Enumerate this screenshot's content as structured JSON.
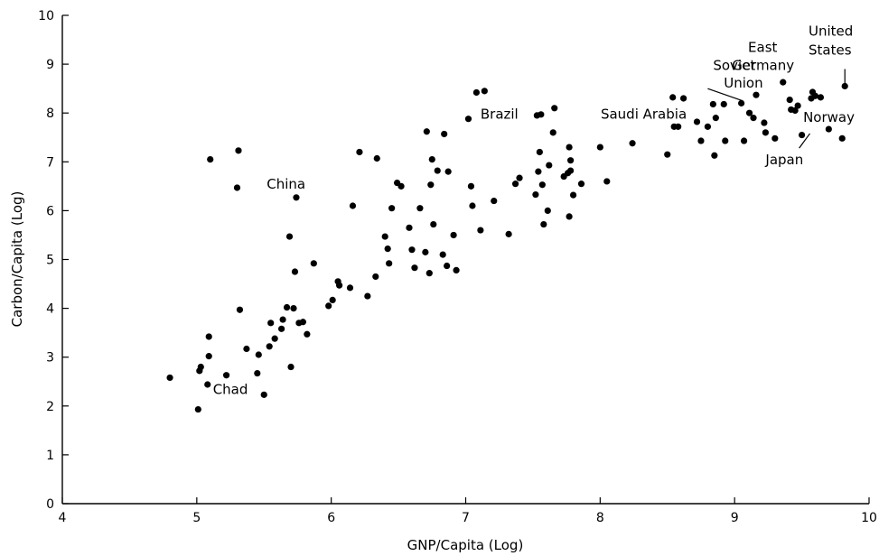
{
  "chart_data": {
    "type": "scatter",
    "title": "",
    "xlabel": "GNP/Capita (Log)",
    "ylabel": "Carbon/Capita (Log)",
    "xlim": [
      4,
      10
    ],
    "ylim": [
      0,
      10
    ],
    "xticks": [
      4,
      5,
      6,
      7,
      8,
      9,
      10
    ],
    "yticks": [
      0,
      1,
      2,
      3,
      4,
      5,
      6,
      7,
      8,
      9,
      10
    ],
    "grid": false,
    "series": [
      {
        "points": [
          [
            4.8,
            2.58
          ],
          [
            5.01,
            1.93
          ],
          [
            5.02,
            2.72
          ],
          [
            5.03,
            2.8
          ],
          [
            5.08,
            2.44
          ],
          [
            5.09,
            3.02
          ],
          [
            5.09,
            3.42
          ],
          [
            5.1,
            7.05
          ],
          [
            5.22,
            2.63
          ],
          [
            5.3,
            6.47
          ],
          [
            5.31,
            7.23
          ],
          [
            5.32,
            3.97
          ],
          [
            5.37,
            3.17
          ],
          [
            5.45,
            2.67
          ],
          [
            5.46,
            3.05
          ],
          [
            5.5,
            2.23
          ],
          [
            5.54,
            3.22
          ],
          [
            5.55,
            3.7
          ],
          [
            5.58,
            3.38
          ],
          [
            5.63,
            3.58
          ],
          [
            5.64,
            3.77
          ],
          [
            5.67,
            4.02
          ],
          [
            5.69,
            5.47
          ],
          [
            5.7,
            2.8
          ],
          [
            5.72,
            4.0
          ],
          [
            5.73,
            4.75
          ],
          [
            5.74,
            6.27
          ],
          [
            5.76,
            3.7
          ],
          [
            5.79,
            3.72
          ],
          [
            5.82,
            3.47
          ],
          [
            5.87,
            4.92
          ],
          [
            5.98,
            4.05
          ],
          [
            6.01,
            4.17
          ],
          [
            6.05,
            4.55
          ],
          [
            6.06,
            4.47
          ],
          [
            6.14,
            4.42
          ],
          [
            6.16,
            6.1
          ],
          [
            6.21,
            7.2
          ],
          [
            6.27,
            4.25
          ],
          [
            6.33,
            4.65
          ],
          [
            6.34,
            7.07
          ],
          [
            6.4,
            5.47
          ],
          [
            6.42,
            5.22
          ],
          [
            6.43,
            4.92
          ],
          [
            6.45,
            6.05
          ],
          [
            6.49,
            6.57
          ],
          [
            6.52,
            6.5
          ],
          [
            6.58,
            5.65
          ],
          [
            6.6,
            5.2
          ],
          [
            6.62,
            4.83
          ],
          [
            6.66,
            6.05
          ],
          [
            6.7,
            5.15
          ],
          [
            6.71,
            7.62
          ],
          [
            6.73,
            4.72
          ],
          [
            6.74,
            6.53
          ],
          [
            6.75,
            7.05
          ],
          [
            6.76,
            5.72
          ],
          [
            6.79,
            6.82
          ],
          [
            6.83,
            5.1
          ],
          [
            6.84,
            7.57
          ],
          [
            6.86,
            4.87
          ],
          [
            6.87,
            6.8
          ],
          [
            6.91,
            5.5
          ],
          [
            6.93,
            4.78
          ],
          [
            7.02,
            7.88
          ],
          [
            7.04,
            6.5
          ],
          [
            7.05,
            6.1
          ],
          [
            7.08,
            8.42
          ],
          [
            7.11,
            5.6
          ],
          [
            7.14,
            8.45
          ],
          [
            7.21,
            6.2
          ],
          [
            7.32,
            5.52
          ],
          [
            7.37,
            6.55
          ],
          [
            7.4,
            6.67
          ],
          [
            7.52,
            6.33
          ],
          [
            7.53,
            7.95
          ],
          [
            7.54,
            6.8
          ],
          [
            7.55,
            7.2
          ],
          [
            7.56,
            7.97
          ],
          [
            7.57,
            6.53
          ],
          [
            7.58,
            5.72
          ],
          [
            7.61,
            6.0
          ],
          [
            7.62,
            6.93
          ],
          [
            7.65,
            7.6
          ],
          [
            7.66,
            8.1
          ],
          [
            7.73,
            6.7
          ],
          [
            7.76,
            6.77
          ],
          [
            7.77,
            7.3
          ],
          [
            7.77,
            5.88
          ],
          [
            7.78,
            7.03
          ],
          [
            7.78,
            6.82
          ],
          [
            7.8,
            6.32
          ],
          [
            7.86,
            6.55
          ],
          [
            8.0,
            7.3
          ],
          [
            8.05,
            6.6
          ],
          [
            8.24,
            7.38
          ],
          [
            8.5,
            7.15
          ],
          [
            8.54,
            8.32
          ],
          [
            8.55,
            7.72
          ],
          [
            8.58,
            7.72
          ],
          [
            8.62,
            8.3
          ],
          [
            8.72,
            7.82
          ],
          [
            8.75,
            7.43
          ],
          [
            8.8,
            7.72
          ],
          [
            8.84,
            8.18
          ],
          [
            8.85,
            7.13
          ],
          [
            8.86,
            7.9
          ],
          [
            8.92,
            8.18
          ],
          [
            8.93,
            7.43
          ],
          [
            9.05,
            8.2
          ],
          [
            9.07,
            7.43
          ],
          [
            9.11,
            8.0
          ],
          [
            9.14,
            7.9
          ],
          [
            9.16,
            8.37
          ],
          [
            9.22,
            7.8
          ],
          [
            9.23,
            7.6
          ],
          [
            9.3,
            7.48
          ],
          [
            9.36,
            8.63
          ],
          [
            9.41,
            8.27
          ],
          [
            9.42,
            8.07
          ],
          [
            9.45,
            8.05
          ],
          [
            9.47,
            8.15
          ],
          [
            9.5,
            7.55
          ],
          [
            9.57,
            8.3
          ],
          [
            9.58,
            8.43
          ],
          [
            9.6,
            8.35
          ],
          [
            9.64,
            8.32
          ],
          [
            9.7,
            7.67
          ],
          [
            9.8,
            7.48
          ],
          [
            9.82,
            8.55
          ]
        ]
      }
    ],
    "annotations": [
      {
        "text": "China",
        "x": 5.52,
        "y": 6.45,
        "anchor": "start"
      },
      {
        "text": "Chad",
        "x": 5.12,
        "y": 2.25,
        "anchor": "start"
      },
      {
        "text": "Brazil",
        "x": 7.11,
        "y": 7.88,
        "anchor": "start"
      },
      {
        "text": "Saudi Arabia",
        "x": 7.03,
        "y": 7.88,
        "anchor": "start",
        "offset_x": 145
      },
      {
        "text": "Soviet",
        "x": 8.84,
        "y": 8.88,
        "anchor": "start"
      },
      {
        "text": "Union",
        "x": 8.92,
        "y": 8.52,
        "anchor": "start"
      },
      {
        "text": "East",
        "x": 9.1,
        "y": 9.25,
        "anchor": "start"
      },
      {
        "text": "Germany",
        "x": 8.98,
        "y": 8.88,
        "anchor": "start"
      },
      {
        "text": "United",
        "x": 9.55,
        "y": 9.58,
        "anchor": "start"
      },
      {
        "text": "States",
        "x": 9.55,
        "y": 9.2,
        "anchor": "start"
      },
      {
        "text": "Norway",
        "x": 9.51,
        "y": 7.82,
        "anchor": "start"
      },
      {
        "text": "Japan",
        "x": 9.23,
        "y": 6.95,
        "anchor": "start"
      }
    ],
    "leader_lines": [
      {
        "from": [
          8.8,
          8.5
        ],
        "to": [
          9.06,
          8.25
        ]
      },
      {
        "from": [
          9.82,
          8.9
        ],
        "to": [
          9.82,
          8.6
        ]
      },
      {
        "from": [
          9.48,
          7.28
        ],
        "to": [
          9.56,
          7.58
        ]
      }
    ]
  }
}
